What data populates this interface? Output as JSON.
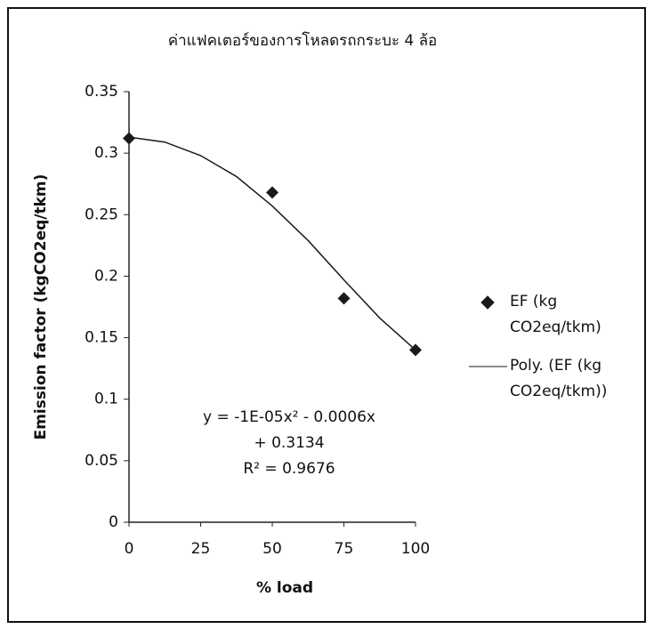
{
  "chart_data": {
    "type": "scatter",
    "title": "ค่าแฟคเตอร์ของการโหลดรถกระบะ 4 ล้อ",
    "x_label": "% load",
    "y_label": "Emission factor (kgCO2eq/tkm)",
    "x": [
      0,
      50,
      75,
      100
    ],
    "series": [
      {
        "name": "EF (kg CO2eq/tkm)",
        "color": "#1a1a1a",
        "marker": "diamond",
        "values": [
          0.312,
          0.268,
          0.182,
          0.14
        ]
      },
      {
        "name": "Poly. (EF (kg CO2eq/tkm))",
        "color": "#1a1a1a",
        "marker": "line",
        "x": [
          0,
          12.5,
          25,
          37.5,
          50,
          62.5,
          75,
          87.5,
          100
        ],
        "values": [
          0.313,
          0.309,
          0.298,
          0.281,
          0.257,
          0.229,
          0.197,
          0.166,
          0.14
        ]
      }
    ],
    "annotations": [
      "y = -1E-05x² - 0.0006x + 0.3134",
      "R² = 0.9676"
    ],
    "xlim": [
      0,
      100
    ],
    "xticks": [
      0,
      25,
      50,
      75,
      100
    ],
    "ylim": [
      0,
      0.35
    ],
    "yticks": [
      0,
      0.05,
      0.1,
      0.15,
      0.2,
      0.25,
      0.3,
      0.35
    ],
    "grid": false,
    "legend": "right"
  }
}
